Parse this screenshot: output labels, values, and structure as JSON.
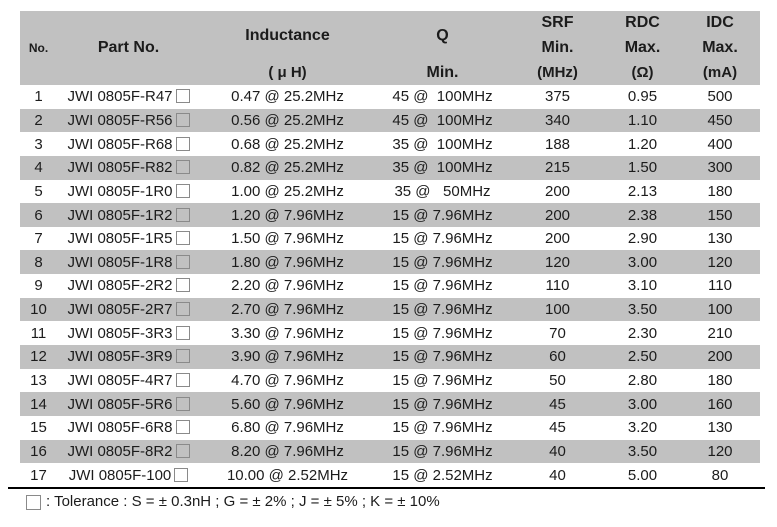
{
  "colors": {
    "header_bg": "#c1c1c1",
    "row_alt_bg": "#c1c1c1",
    "text": "#1c1c1c",
    "rule": "#000000",
    "checkbox_border": "#8a8a8a"
  },
  "table": {
    "columns": [
      {
        "id": "no",
        "lines": [
          "No."
        ]
      },
      {
        "id": "part",
        "lines": [
          "Part No."
        ]
      },
      {
        "id": "inductance",
        "lines": [
          "Inductance",
          "( μ H)"
        ]
      },
      {
        "id": "q",
        "lines": [
          "Q",
          "Min."
        ]
      },
      {
        "id": "srf",
        "lines": [
          "SRF",
          "Min.",
          "(MHz)"
        ]
      },
      {
        "id": "rdc",
        "lines": [
          "RDC",
          "Max.",
          "(Ω)"
        ]
      },
      {
        "id": "idc",
        "lines": [
          "IDC",
          "Max.",
          "(mA)"
        ]
      }
    ],
    "rows": [
      {
        "no": "1",
        "part": "JWI 0805F-R47",
        "inductance": "0.47 @ 25.2MHz",
        "q": "45 @  100MHz",
        "srf": "375",
        "rdc": "0.95",
        "idc": "500"
      },
      {
        "no": "2",
        "part": "JWI 0805F-R56",
        "inductance": "0.56 @ 25.2MHz",
        "q": "45 @  100MHz",
        "srf": "340",
        "rdc": "1.10",
        "idc": "450"
      },
      {
        "no": "3",
        "part": "JWI 0805F-R68",
        "inductance": "0.68 @ 25.2MHz",
        "q": "35 @  100MHz",
        "srf": "188",
        "rdc": "1.20",
        "idc": "400"
      },
      {
        "no": "4",
        "part": "JWI 0805F-R82",
        "inductance": "0.82 @ 25.2MHz",
        "q": "35 @  100MHz",
        "srf": "215",
        "rdc": "1.50",
        "idc": "300"
      },
      {
        "no": "5",
        "part": "JWI 0805F-1R0",
        "inductance": "1.00 @ 25.2MHz",
        "q": "35 @   50MHz",
        "srf": "200",
        "rdc": "2.13",
        "idc": "180"
      },
      {
        "no": "6",
        "part": "JWI 0805F-1R2",
        "inductance": "1.20 @ 7.96MHz",
        "q": "15 @ 7.96MHz",
        "srf": "200",
        "rdc": "2.38",
        "idc": "150"
      },
      {
        "no": "7",
        "part": "JWI 0805F-1R5",
        "inductance": "1.50 @ 7.96MHz",
        "q": "15 @ 7.96MHz",
        "srf": "200",
        "rdc": "2.90",
        "idc": "130"
      },
      {
        "no": "8",
        "part": "JWI 0805F-1R8",
        "inductance": "1.80 @ 7.96MHz",
        "q": "15 @ 7.96MHz",
        "srf": "120",
        "rdc": "3.00",
        "idc": "120"
      },
      {
        "no": "9",
        "part": "JWI 0805F-2R2",
        "inductance": "2.20 @ 7.96MHz",
        "q": "15 @ 7.96MHz",
        "srf": "110",
        "rdc": "3.10",
        "idc": "110"
      },
      {
        "no": "10",
        "part": "JWI 0805F-2R7",
        "inductance": "2.70 @ 7.96MHz",
        "q": "15 @ 7.96MHz",
        "srf": "100",
        "rdc": "3.50",
        "idc": "100"
      },
      {
        "no": "11",
        "part": "JWI 0805F-3R3",
        "inductance": "3.30 @ 7.96MHz",
        "q": "15 @ 7.96MHz",
        "srf": "70",
        "rdc": "2.30",
        "idc": "210"
      },
      {
        "no": "12",
        "part": "JWI 0805F-3R9",
        "inductance": "3.90 @ 7.96MHz",
        "q": "15 @ 7.96MHz",
        "srf": "60",
        "rdc": "2.50",
        "idc": "200"
      },
      {
        "no": "13",
        "part": "JWI 0805F-4R7",
        "inductance": "4.70 @ 7.96MHz",
        "q": "15 @ 7.96MHz",
        "srf": "50",
        "rdc": "2.80",
        "idc": "180"
      },
      {
        "no": "14",
        "part": "JWI 0805F-5R6",
        "inductance": "5.60 @ 7.96MHz",
        "q": "15 @ 7.96MHz",
        "srf": "45",
        "rdc": "3.00",
        "idc": "160"
      },
      {
        "no": "15",
        "part": "JWI 0805F-6R8",
        "inductance": "6.80 @ 7.96MHz",
        "q": "15 @ 7.96MHz",
        "srf": "45",
        "rdc": "3.20",
        "idc": "130"
      },
      {
        "no": "16",
        "part": "JWI 0805F-8R2",
        "inductance": "8.20 @ 7.96MHz",
        "q": "15 @ 7.96MHz",
        "srf": "40",
        "rdc": "3.50",
        "idc": "120"
      },
      {
        "no": "17",
        "part": "JWI 0805F-100",
        "inductance": "10.00 @ 2.52MHz",
        "q": "15 @ 2.52MHz",
        "srf": "40",
        "rdc": "5.00",
        "idc": "80"
      }
    ]
  },
  "footer": {
    "note": ": Tolerance : S = ± 0.3nH ; G = ± 2% ; J = ± 5% ; K = ± 10%"
  }
}
